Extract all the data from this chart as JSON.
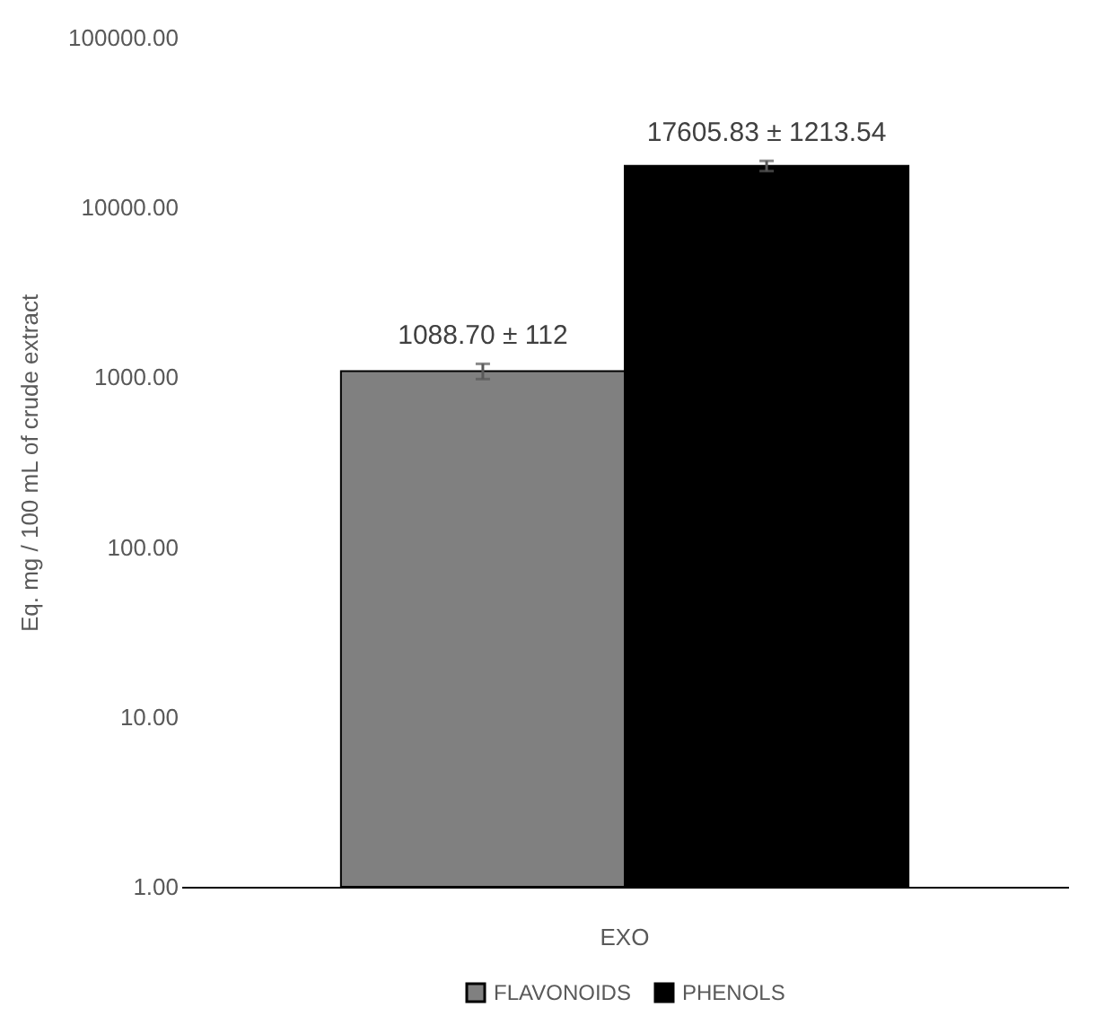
{
  "chart_data": {
    "type": "bar",
    "ylabel": "Eq. mg / 100 mL of crude extract",
    "categories": [
      "EXO"
    ],
    "series": [
      {
        "name": "FLAVONOIDS",
        "color": "#808080",
        "values": [
          1088.7
        ],
        "errors": [
          112
        ],
        "value_labels": [
          "1088.70 ± 112"
        ]
      },
      {
        "name": "PHENOLS",
        "color": "#000000",
        "values": [
          17605.83
        ],
        "errors": [
          1213.54
        ],
        "value_labels": [
          "17605.83 ± 1213.54"
        ]
      }
    ],
    "log": true,
    "ylim": [
      1,
      100000
    ],
    "yticks": [
      {
        "value": 1,
        "label": "1.00"
      },
      {
        "value": 10,
        "label": "10.00"
      },
      {
        "value": 100,
        "label": "100.00"
      },
      {
        "value": 1000,
        "label": "1000.00"
      },
      {
        "value": 10000,
        "label": "10000.00"
      },
      {
        "value": 100000,
        "label": "100000.00"
      }
    ],
    "grid": false,
    "legend": "bottom"
  }
}
